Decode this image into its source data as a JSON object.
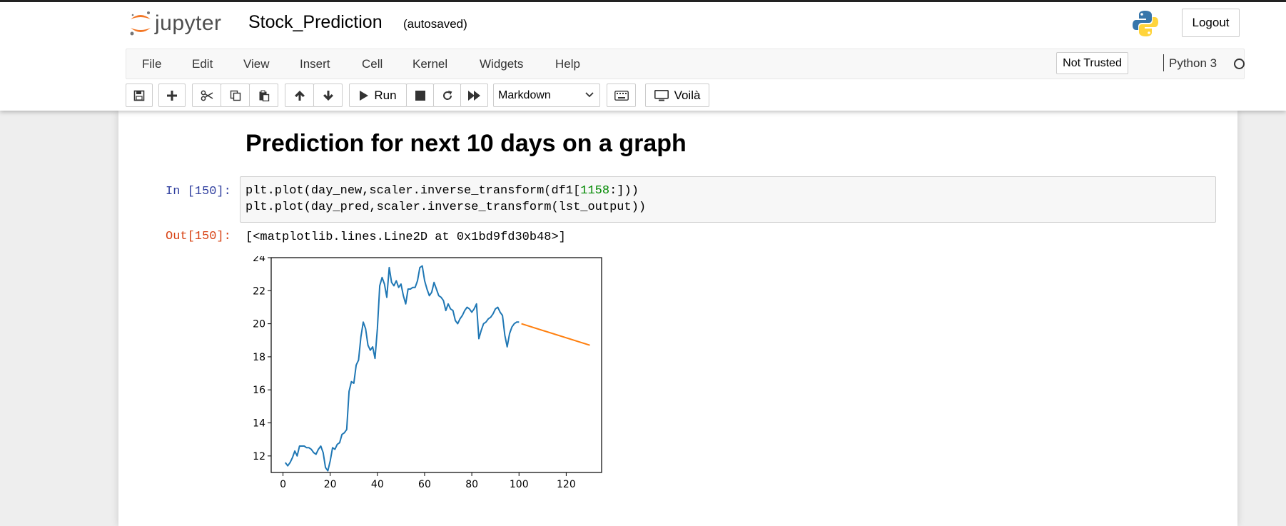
{
  "header": {
    "logo_text": "jupyter",
    "notebook_name": "Stock_Prediction",
    "autosave_status": "(autosaved)",
    "logout_label": "Logout"
  },
  "menubar": {
    "items": [
      "File",
      "Edit",
      "View",
      "Insert",
      "Cell",
      "Kernel",
      "Widgets",
      "Help"
    ],
    "trust_label": "Not Trusted",
    "kernel_name": "Python 3"
  },
  "toolbar": {
    "run_label": "Run",
    "cell_type": "Markdown",
    "voila_label": "Voilà"
  },
  "notebook": {
    "heading": "Prediction for next 10 days on a graph",
    "in_prompt": "In [150]:",
    "code_line1_a": "plt.plot(day_new,scaler.inverse_transform(df1[",
    "code_line1_num": "1158",
    "code_line1_b": ":]))",
    "code_line2": "plt.plot(day_pred,scaler.inverse_transform(lst_output))",
    "out_prompt": "Out[150]:",
    "out_text": "[<matplotlib.lines.Line2D at 0x1bd9fd30b48>]"
  },
  "chart_data": {
    "type": "line",
    "xlim": [
      -5,
      135
    ],
    "ylim": [
      11,
      24
    ],
    "xticks": [
      0,
      20,
      40,
      60,
      80,
      100,
      120
    ],
    "yticks": [
      12,
      14,
      16,
      18,
      20,
      22,
      24
    ],
    "colors": [
      "#1f77b4",
      "#ff7f0e"
    ],
    "series": [
      {
        "x": [
          1,
          2,
          3,
          4,
          5,
          6,
          7,
          8,
          9,
          10,
          11,
          12,
          13,
          14,
          15,
          16,
          17,
          18,
          19,
          20,
          21,
          22,
          23,
          24,
          25,
          26,
          27,
          28,
          29,
          30,
          31,
          32,
          33,
          34,
          35,
          36,
          37,
          38,
          39,
          40,
          41,
          42,
          43,
          44,
          45,
          46,
          47,
          48,
          49,
          50,
          51,
          52,
          53,
          54,
          55,
          56,
          57,
          58,
          59,
          60,
          61,
          62,
          63,
          64,
          65,
          66,
          67,
          68,
          69,
          70,
          71,
          72,
          73,
          74,
          75,
          76,
          77,
          78,
          79,
          80,
          81,
          82,
          83,
          84,
          85,
          86,
          87,
          88,
          89,
          90,
          91,
          92,
          93,
          94,
          95,
          96,
          97,
          98,
          99,
          100
        ],
        "values": [
          11.6,
          11.4,
          11.6,
          11.9,
          12.3,
          12.0,
          12.6,
          12.6,
          12.6,
          12.5,
          12.5,
          12.4,
          12.2,
          12.1,
          12.4,
          12.6,
          12.2,
          11.3,
          11.1,
          11.7,
          12.5,
          12.4,
          12.7,
          12.8,
          13.3,
          13.4,
          13.6,
          15.9,
          16.5,
          16.4,
          17.5,
          17.8,
          19.2,
          20.1,
          19.7,
          18.7,
          18.4,
          18.6,
          17.9,
          19.7,
          22.3,
          22.8,
          22.4,
          21.6,
          23.4,
          22.5,
          22.3,
          22.6,
          22.2,
          22.4,
          21.7,
          21.2,
          22.1,
          22.1,
          22.2,
          22.2,
          22.6,
          23.4,
          23.5,
          22.6,
          22.1,
          21.7,
          21.9,
          22.5,
          22.1,
          21.7,
          21.6,
          21.4,
          20.8,
          21.2,
          20.9,
          20.8,
          20.2,
          20.0,
          20.3,
          20.5,
          20.8,
          21.0,
          20.9,
          20.7,
          20.9,
          21.2,
          19.1,
          19.6,
          20.0,
          20.1,
          20.3,
          20.4,
          20.6,
          20.9,
          21.0,
          20.7,
          20.5,
          19.3,
          18.6,
          19.4,
          19.8,
          20.0,
          20.1,
          20.1
        ]
      },
      {
        "x": [
          101,
          130
        ],
        "values": [
          20.0,
          18.7
        ]
      }
    ]
  }
}
